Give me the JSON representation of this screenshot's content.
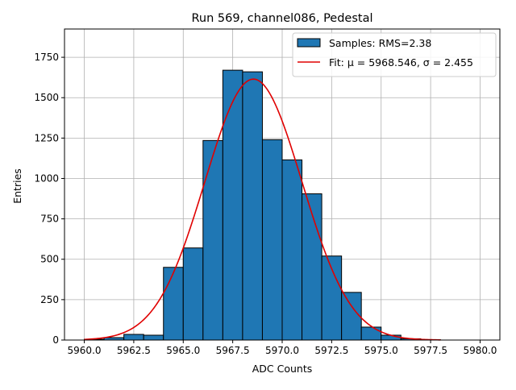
{
  "chart_data": {
    "type": "bar",
    "title": "Run 569, channel086, Pedestal",
    "xlabel": "ADC Counts",
    "ylabel": "Entries",
    "xlim": [
      5959.0,
      5981.0
    ],
    "ylim": [
      0,
      1925
    ],
    "xticks": [
      5960.0,
      5962.5,
      5965.0,
      5967.5,
      5970.0,
      5972.5,
      5975.0,
      5977.5,
      5980.0
    ],
    "xtick_labels": [
      "5960.0",
      "5962.5",
      "5965.0",
      "5967.5",
      "5970.0",
      "5972.5",
      "5975.0",
      "5977.5",
      "5980.0"
    ],
    "yticks": [
      0,
      250,
      500,
      750,
      1000,
      1250,
      1500,
      1750
    ],
    "ytick_labels": [
      "0",
      "250",
      "500",
      "750",
      "1000",
      "1250",
      "1500",
      "1750"
    ],
    "grid": true,
    "legend_position": "top-right",
    "bins": {
      "edges": [
        5960,
        5961,
        5962,
        5963,
        5964,
        5965,
        5966,
        5967,
        5968,
        5969,
        5970,
        5971,
        5972,
        5973,
        5974,
        5975,
        5976,
        5977,
        5978,
        5979,
        5980
      ],
      "counts": [
        5,
        15,
        35,
        30,
        450,
        570,
        1235,
        1670,
        1660,
        1240,
        1115,
        905,
        520,
        295,
        80,
        30,
        8,
        2,
        0,
        0
      ]
    },
    "series": [
      {
        "name": "Samples: RMS=2.38",
        "kind": "histogram",
        "color": "#1f77b4",
        "edgecolor": "#000000"
      },
      {
        "name": "Fit: μ = 5968.546, σ = 2.455",
        "kind": "gaussian-fit",
        "color": "#e00000",
        "mu": 5968.546,
        "sigma": 2.455,
        "amplitude": 1615,
        "x_range": [
          5960,
          5978
        ]
      }
    ]
  }
}
